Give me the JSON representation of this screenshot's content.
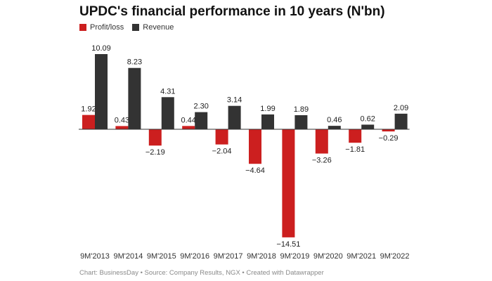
{
  "chart_data": {
    "type": "bar",
    "title": "UPDC's financial performance in 10 years (N'bn)",
    "categories": [
      "9M'2013",
      "9M'2014",
      "9M'2015",
      "9M'2016",
      "9M'2017",
      "9M'2018",
      "9M'2019",
      "9M'2020",
      "9M'2021",
      "9M'2022"
    ],
    "series": [
      {
        "name": "Profit/loss",
        "color": "#cc1f1f",
        "values": [
          1.92,
          0.43,
          -2.19,
          0.44,
          -2.04,
          -4.64,
          -14.51,
          -3.26,
          -1.81,
          -0.29
        ],
        "labels": [
          "1.92",
          "0.43",
          "−2.19",
          "0.44",
          "−2.04",
          "−4.64",
          "−14.51",
          "−3.26",
          "−1.81",
          "−0.29"
        ]
      },
      {
        "name": "Revenue",
        "color": "#333333",
        "values": [
          10.09,
          8.23,
          4.31,
          2.3,
          3.14,
          1.99,
          1.89,
          0.46,
          0.62,
          2.09
        ],
        "labels": [
          "10.09",
          "8.23",
          "4.31",
          "2.30",
          "3.14",
          "1.99",
          "1.89",
          "0.46",
          "0.62",
          "2.09"
        ]
      }
    ],
    "xlabel": "",
    "ylabel": "",
    "ylim": [
      -14.51,
      10.09
    ],
    "grid": false,
    "legend_position": "top-left"
  },
  "footer": {
    "text": "Chart: BusinessDay • Source: Company Results, NGX • Created with Datawrapper"
  }
}
